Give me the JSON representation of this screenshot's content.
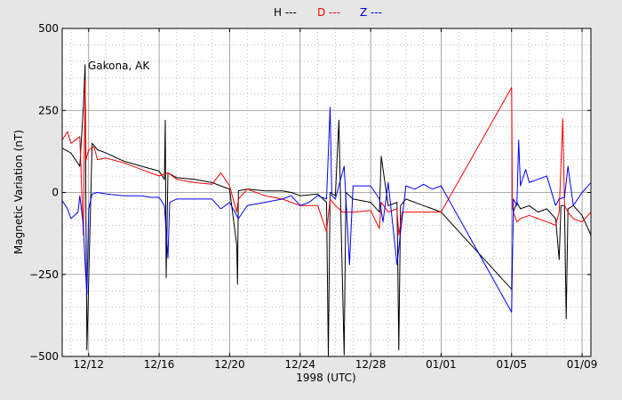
{
  "chart_data": {
    "type": "line",
    "xlabel": "1998 (UTC)",
    "ylabel": "Magnetic Variation (nT)",
    "annotation": "Gakona, AK",
    "ylim": [
      -500,
      500
    ],
    "yticks": [
      500,
      250,
      0,
      -250,
      -500
    ],
    "ytick_labels": [
      "500",
      "250",
      "0",
      "−250",
      "−500"
    ],
    "xlim_days": [
      -1.5,
      28.5
    ],
    "xticks": [
      {
        "day": 0,
        "label": "12/12"
      },
      {
        "day": 4,
        "label": "12/16"
      },
      {
        "day": 8,
        "label": "12/20"
      },
      {
        "day": 12,
        "label": "12/24"
      },
      {
        "day": 16,
        "label": "12/28"
      },
      {
        "day": 20,
        "label": "01/01"
      },
      {
        "day": 24,
        "label": "01/05"
      },
      {
        "day": 28,
        "label": "01/09"
      }
    ],
    "grid": true,
    "legend_position": "top-center",
    "series": [
      {
        "name": "H ---",
        "color": "#000000",
        "points": [
          [
            -1.5,
            135
          ],
          [
            -1.0,
            120
          ],
          [
            -0.5,
            80
          ],
          [
            -0.3,
            260
          ],
          [
            -0.2,
            390
          ],
          [
            -0.15,
            -100
          ],
          [
            -0.1,
            -480
          ],
          [
            0.2,
            150
          ],
          [
            0.5,
            130
          ],
          [
            1.0,
            120
          ],
          [
            2.0,
            95
          ],
          [
            3.0,
            80
          ],
          [
            4.0,
            65
          ],
          [
            4.3,
            40
          ],
          [
            4.35,
            220
          ],
          [
            4.4,
            -260
          ],
          [
            4.5,
            60
          ],
          [
            5.0,
            45
          ],
          [
            6.0,
            40
          ],
          [
            7.0,
            30
          ],
          [
            7.5,
            20
          ],
          [
            8.0,
            10
          ],
          [
            8.4,
            -160
          ],
          [
            8.45,
            -280
          ],
          [
            8.5,
            5
          ],
          [
            9.0,
            10
          ],
          [
            10.0,
            5
          ],
          [
            11.0,
            5
          ],
          [
            11.5,
            0
          ],
          [
            12.0,
            -10
          ],
          [
            13.0,
            -5
          ],
          [
            13.5,
            -30
          ],
          [
            13.6,
            -500
          ],
          [
            13.7,
            0
          ],
          [
            14.0,
            -10
          ],
          [
            14.2,
            220
          ],
          [
            14.3,
            -40
          ],
          [
            14.5,
            -495
          ],
          [
            14.6,
            0
          ],
          [
            15.0,
            -20
          ],
          [
            16.0,
            -30
          ],
          [
            16.5,
            -60
          ],
          [
            16.6,
            110
          ],
          [
            17.0,
            -40
          ],
          [
            17.5,
            -30
          ],
          [
            17.6,
            -480
          ],
          [
            17.7,
            -40
          ],
          [
            18.0,
            -20
          ],
          [
            19.0,
            -40
          ],
          [
            19.5,
            -50
          ],
          [
            20.0,
            -60
          ],
          [
            24.0,
            -295
          ],
          [
            24.1,
            -60
          ],
          [
            24.3,
            -30
          ],
          [
            24.5,
            -50
          ],
          [
            25.0,
            -40
          ],
          [
            25.5,
            -60
          ],
          [
            26.0,
            -50
          ],
          [
            26.5,
            -80
          ],
          [
            26.7,
            -205
          ],
          [
            26.8,
            -40
          ],
          [
            27.0,
            -40
          ],
          [
            27.1,
            -385
          ],
          [
            27.2,
            -50
          ],
          [
            27.5,
            -40
          ],
          [
            28.0,
            -70
          ],
          [
            28.5,
            -130
          ]
        ]
      },
      {
        "name": "D ---",
        "color": "#ff0000",
        "points": [
          [
            -1.5,
            160
          ],
          [
            -1.2,
            185
          ],
          [
            -1.0,
            150
          ],
          [
            -0.5,
            170
          ],
          [
            -0.3,
            -130
          ],
          [
            -0.2,
            340
          ],
          [
            -0.15,
            100
          ],
          [
            0.0,
            130
          ],
          [
            0.3,
            140
          ],
          [
            0.5,
            100
          ],
          [
            1.0,
            105
          ],
          [
            2.0,
            90
          ],
          [
            3.0,
            70
          ],
          [
            4.0,
            50
          ],
          [
            4.5,
            60
          ],
          [
            5.0,
            40
          ],
          [
            6.0,
            30
          ],
          [
            7.0,
            25
          ],
          [
            7.5,
            60
          ],
          [
            8.0,
            20
          ],
          [
            8.4,
            -60
          ],
          [
            8.5,
            -20
          ],
          [
            9.0,
            10
          ],
          [
            10.0,
            -10
          ],
          [
            11.0,
            -20
          ],
          [
            11.5,
            -30
          ],
          [
            12.0,
            -40
          ],
          [
            13.0,
            -40
          ],
          [
            13.5,
            -120
          ],
          [
            13.7,
            -20
          ],
          [
            14.0,
            -40
          ],
          [
            14.4,
            -60
          ],
          [
            15.0,
            -60
          ],
          [
            16.0,
            -55
          ],
          [
            16.5,
            -110
          ],
          [
            16.6,
            -30
          ],
          [
            17.0,
            -60
          ],
          [
            17.5,
            -50
          ],
          [
            17.6,
            -130
          ],
          [
            17.8,
            -60
          ],
          [
            18.0,
            -60
          ],
          [
            19.0,
            -60
          ],
          [
            20.0,
            -60
          ],
          [
            24.0,
            320
          ],
          [
            24.05,
            -50
          ],
          [
            24.1,
            -60
          ],
          [
            24.3,
            -90
          ],
          [
            24.5,
            -80
          ],
          [
            25.0,
            -70
          ],
          [
            25.5,
            -80
          ],
          [
            26.0,
            -90
          ],
          [
            26.5,
            -100
          ],
          [
            26.7,
            -60
          ],
          [
            26.9,
            225
          ],
          [
            27.0,
            -40
          ],
          [
            27.2,
            -60
          ],
          [
            27.5,
            -80
          ],
          [
            28.0,
            -90
          ],
          [
            28.5,
            -60
          ]
        ]
      },
      {
        "name": "Z ---",
        "color": "#0000ff",
        "points": [
          [
            -1.5,
            -25
          ],
          [
            -1.2,
            -50
          ],
          [
            -1.0,
            -80
          ],
          [
            -0.6,
            -60
          ],
          [
            -0.5,
            -10
          ],
          [
            -0.3,
            -100
          ],
          [
            -0.2,
            -220
          ],
          [
            -0.1,
            -310
          ],
          [
            0.0,
            -50
          ],
          [
            0.2,
            -5
          ],
          [
            0.5,
            0
          ],
          [
            1.0,
            -5
          ],
          [
            2.0,
            -10
          ],
          [
            3.0,
            -10
          ],
          [
            3.5,
            -15
          ],
          [
            4.0,
            -15
          ],
          [
            4.3,
            -40
          ],
          [
            4.5,
            -200
          ],
          [
            4.6,
            -30
          ],
          [
            5.0,
            -20
          ],
          [
            6.0,
            -20
          ],
          [
            7.0,
            -20
          ],
          [
            7.5,
            -50
          ],
          [
            8.0,
            -30
          ],
          [
            8.5,
            -80
          ],
          [
            9.0,
            -40
          ],
          [
            10.0,
            -30
          ],
          [
            11.0,
            -20
          ],
          [
            11.5,
            -10
          ],
          [
            12.0,
            -40
          ],
          [
            12.5,
            -30
          ],
          [
            13.0,
            -10
          ],
          [
            13.5,
            -20
          ],
          [
            13.7,
            260
          ],
          [
            13.8,
            -10
          ],
          [
            14.0,
            -20
          ],
          [
            14.5,
            80
          ],
          [
            14.8,
            -220
          ],
          [
            15.0,
            20
          ],
          [
            16.0,
            20
          ],
          [
            16.5,
            -20
          ],
          [
            16.7,
            -90
          ],
          [
            17.0,
            30
          ],
          [
            17.5,
            -220
          ],
          [
            17.7,
            -120
          ],
          [
            18.0,
            20
          ],
          [
            18.5,
            10
          ],
          [
            19.0,
            25
          ],
          [
            19.5,
            10
          ],
          [
            20.0,
            20
          ],
          [
            24.0,
            -365
          ],
          [
            24.1,
            -20
          ],
          [
            24.3,
            -40
          ],
          [
            24.4,
            160
          ],
          [
            24.5,
            20
          ],
          [
            24.8,
            70
          ],
          [
            25.0,
            30
          ],
          [
            25.5,
            40
          ],
          [
            26.0,
            50
          ],
          [
            26.5,
            -40
          ],
          [
            26.7,
            -20
          ],
          [
            27.0,
            -15
          ],
          [
            27.2,
            80
          ],
          [
            27.5,
            -40
          ],
          [
            28.0,
            0
          ],
          [
            28.5,
            30
          ]
        ]
      }
    ]
  }
}
